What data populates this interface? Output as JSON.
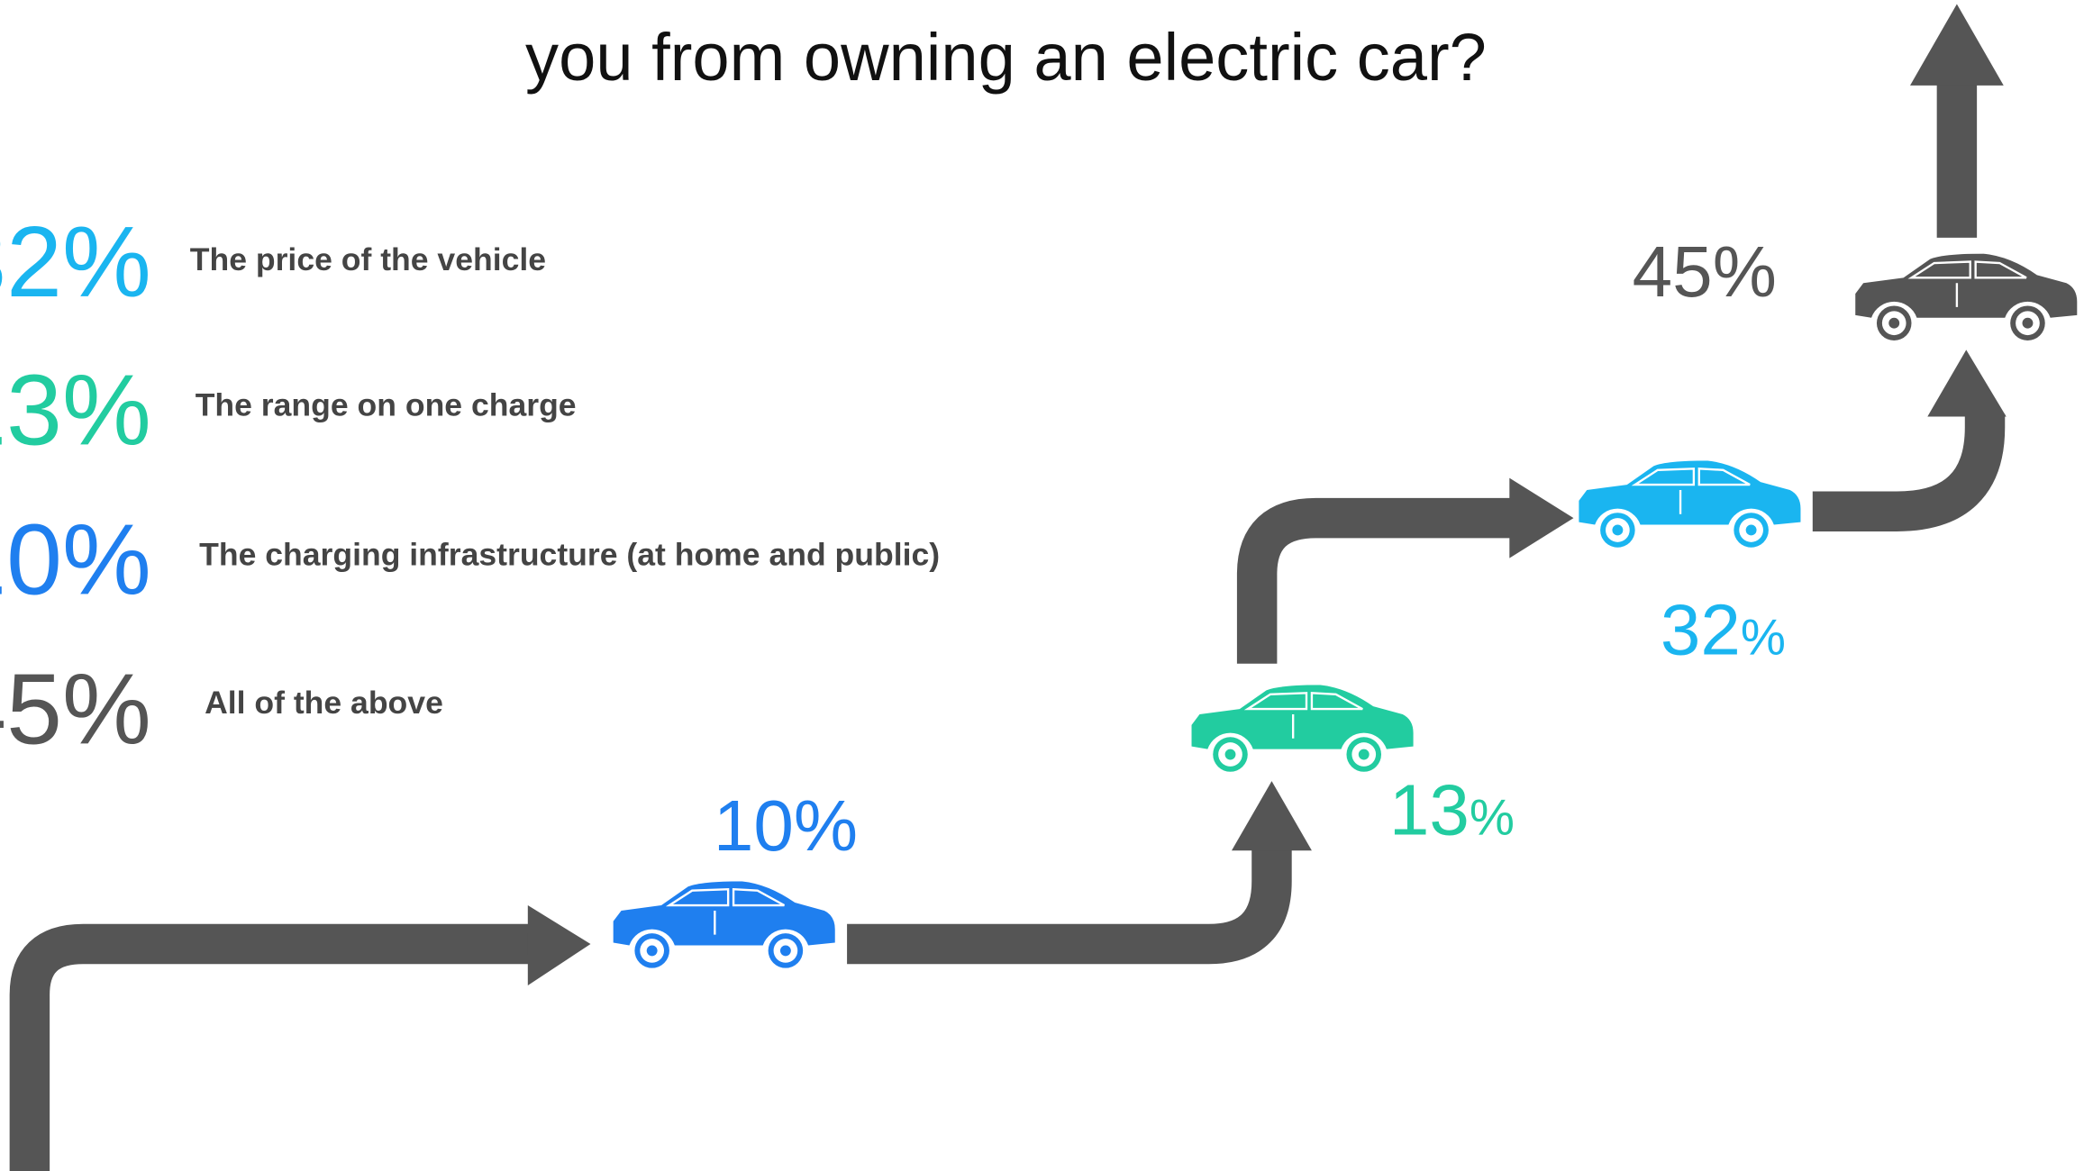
{
  "title": "you from owning an electric car?",
  "items": [
    {
      "value": 32,
      "unit": "%",
      "label": "The price of the vehicle",
      "color": "#1ab5f0"
    },
    {
      "value": 13,
      "unit": "%",
      "label": "The range on one charge",
      "color": "#22cca0"
    },
    {
      "value": 10,
      "unit": "%",
      "label": "The charging infrastructure (at home and public)",
      "color": "#1f7fef"
    },
    {
      "value": 45,
      "unit": "%",
      "label": "All of the above",
      "color": "#555555"
    }
  ]
}
